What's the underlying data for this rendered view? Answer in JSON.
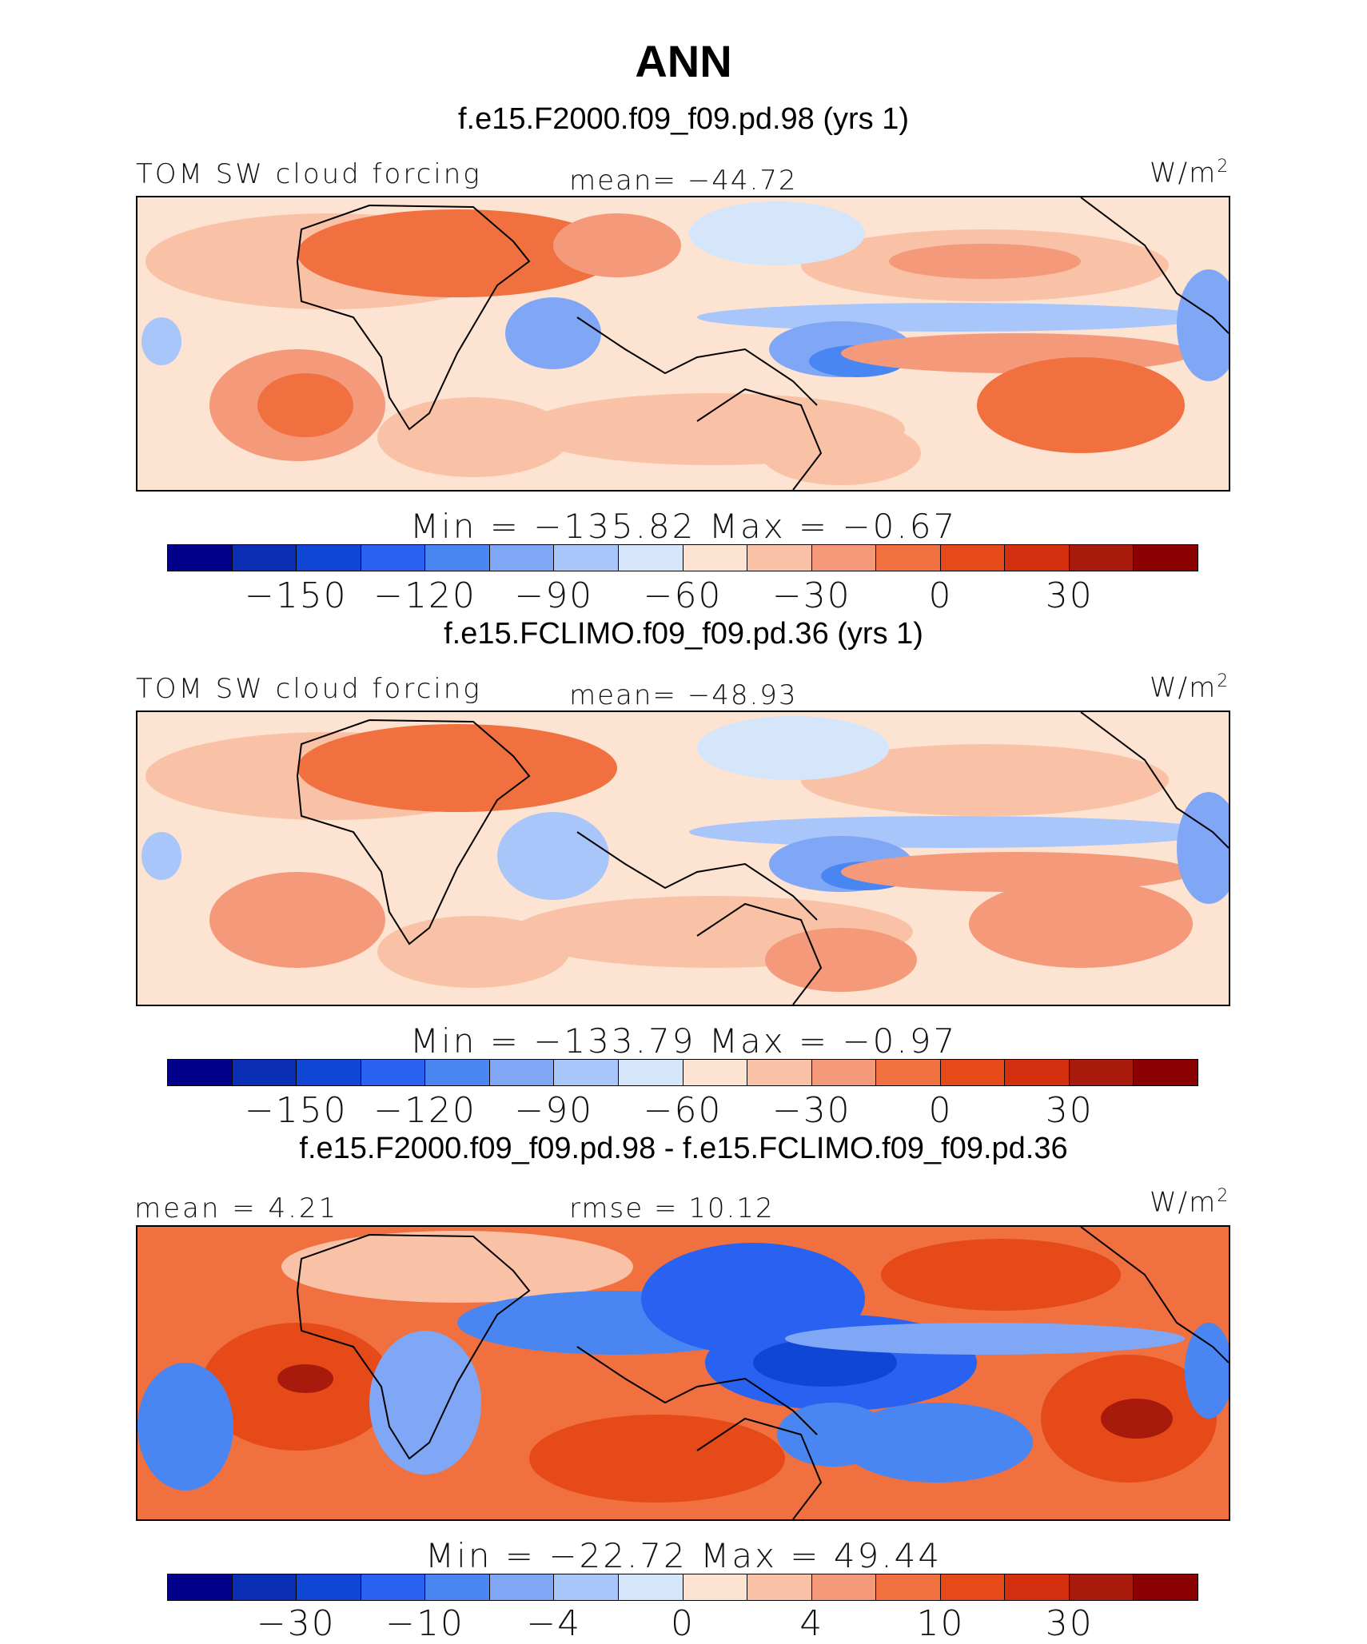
{
  "figure": {
    "title": "ANN",
    "panels": [
      {
        "case_title": "f.e15.F2000.f09_f09.pd.98 (yrs 1)",
        "left_label": "TOM SW cloud forcing",
        "center_label": "mean= −44.72",
        "units_base": "W/m",
        "units_exp": "2",
        "minmax": "Min = −135.82 Max = −0.67"
      },
      {
        "case_title": "f.e15.FCLIMO.f09_f09.pd.36 (yrs 1)",
        "left_label": "TOM SW cloud forcing",
        "center_label": "mean= −48.93",
        "units_base": "W/m",
        "units_exp": "2",
        "minmax": "Min = −133.79 Max = −0.97"
      },
      {
        "case_title": "f.e15.F2000.f09_f09.pd.98 - f.e15.FCLIMO.f09_f09.pd.36",
        "left_label": "mean =    4.21",
        "center_label": "rmse =   10.12",
        "units_base": "W/m",
        "units_exp": "2",
        "minmax": "Min = −22.72 Max =  49.44"
      }
    ]
  },
  "chart_data": [
    {
      "type": "heatmap",
      "title": "TOM SW cloud forcing",
      "case": "f.e15.F2000.f09_f09.pd.98 (yrs 1)",
      "units": "W/m2",
      "mean": -44.72,
      "min": -135.82,
      "max": -0.67,
      "colorbar_ticks": [
        "−150",
        "−120",
        "−90",
        "−60",
        "−30",
        "0",
        "30"
      ],
      "colors": [
        "#00008b",
        "#0a2fb4",
        "#0f46d6",
        "#2962f0",
        "#4a86f2",
        "#7fa7f5",
        "#a9c6fa",
        "#d5e6fb",
        "#fde3d2",
        "#f9c2a6",
        "#f4997a",
        "#f0703f",
        "#e64a19",
        "#d4300f",
        "#a81a0c",
        "#8b0000"
      ]
    },
    {
      "type": "heatmap",
      "title": "TOM SW cloud forcing",
      "case": "f.e15.FCLIMO.f09_f09.pd.36 (yrs 1)",
      "units": "W/m2",
      "mean": -48.93,
      "min": -133.79,
      "max": -0.97,
      "colorbar_ticks": [
        "−150",
        "−120",
        "−90",
        "−60",
        "−30",
        "0",
        "30"
      ],
      "colors": [
        "#00008b",
        "#0a2fb4",
        "#0f46d6",
        "#2962f0",
        "#4a86f2",
        "#7fa7f5",
        "#a9c6fa",
        "#d5e6fb",
        "#fde3d2",
        "#f9c2a6",
        "#f4997a",
        "#f0703f",
        "#e64a19",
        "#d4300f",
        "#a81a0c",
        "#8b0000"
      ]
    },
    {
      "type": "heatmap",
      "title": "f.e15.F2000.f09_f09.pd.98 - f.e15.FCLIMO.f09_f09.pd.36",
      "units": "W/m2",
      "mean": 4.21,
      "rmse": 10.12,
      "min": -22.72,
      "max": 49.44,
      "colorbar_ticks": [
        "−30",
        "−10",
        "−4",
        "0",
        "4",
        "10",
        "30"
      ],
      "colors": [
        "#00008b",
        "#0a2fb4",
        "#0f46d6",
        "#2962f0",
        "#4a86f2",
        "#7fa7f5",
        "#a9c6fa",
        "#d5e6fb",
        "#fde3d2",
        "#f9c2a6",
        "#f4997a",
        "#f0703f",
        "#e64a19",
        "#d4300f",
        "#a81a0c",
        "#8b0000"
      ]
    }
  ]
}
